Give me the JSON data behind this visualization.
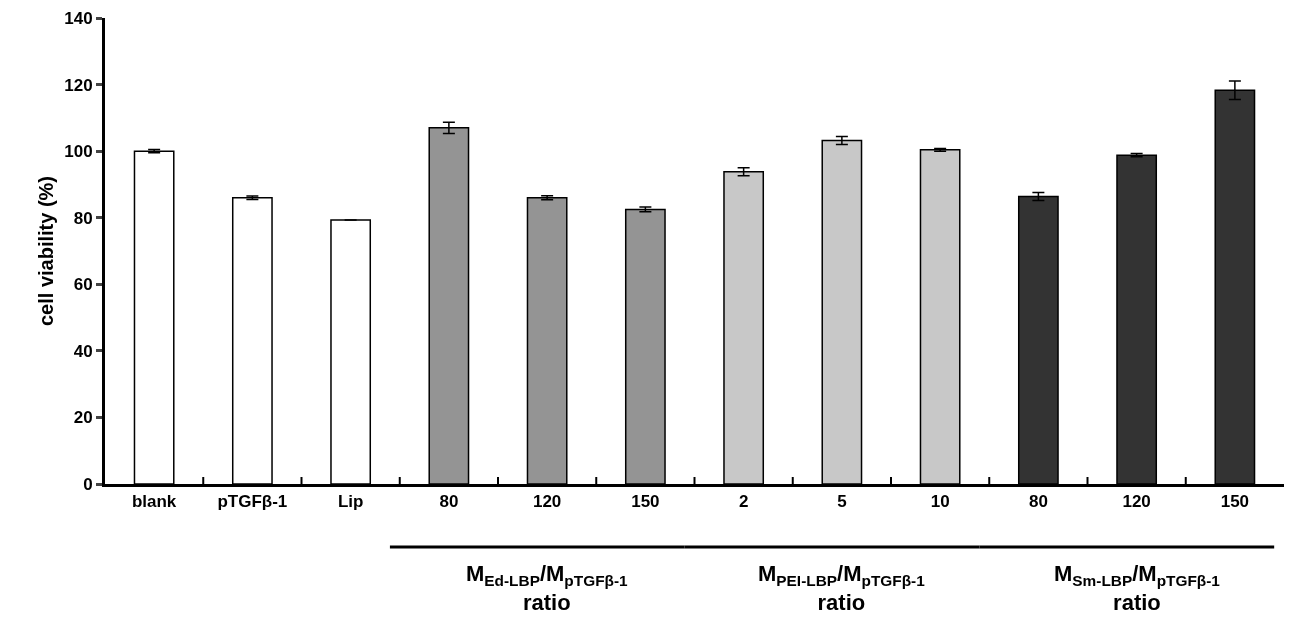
{
  "chart_data": {
    "type": "bar",
    "ylabel": "cell viability (%)",
    "categories": [
      "blank",
      "pTGFβ-1",
      "Lip",
      "80",
      "120",
      "150",
      "2",
      "5",
      "10",
      "80",
      "120",
      "150"
    ],
    "values": [
      100,
      86,
      79.3,
      107,
      86,
      82.5,
      93.8,
      103.2,
      100.4,
      86.4,
      98.8,
      118.3
    ],
    "errors": [
      0.5,
      0.5,
      null,
      1.7,
      0.6,
      0.7,
      1.2,
      1.2,
      0.4,
      1.2,
      0.5,
      2.8
    ],
    "colors": [
      "#ffffff",
      "#ffffff",
      "#ffffff",
      "#949494",
      "#949494",
      "#949494",
      "#c8c8c8",
      "#c8c8c8",
      "#c8c8c8",
      "#333333",
      "#333333",
      "#333333"
    ],
    "ylim": [
      0,
      140
    ],
    "yticks": [
      0,
      20,
      40,
      60,
      80,
      100,
      120,
      140
    ],
    "grid": false,
    "legend": false,
    "annotations": [
      "M$_{Ed-LBP}$/M$_{pTGFβ-1}$\nratio",
      "M$_{PEI-LBP}$/M$_{pTGFβ-1}$\nratio",
      "M$_{Sm-LBP}$/M$_{pTGFβ-1}$\nratio"
    ]
  }
}
